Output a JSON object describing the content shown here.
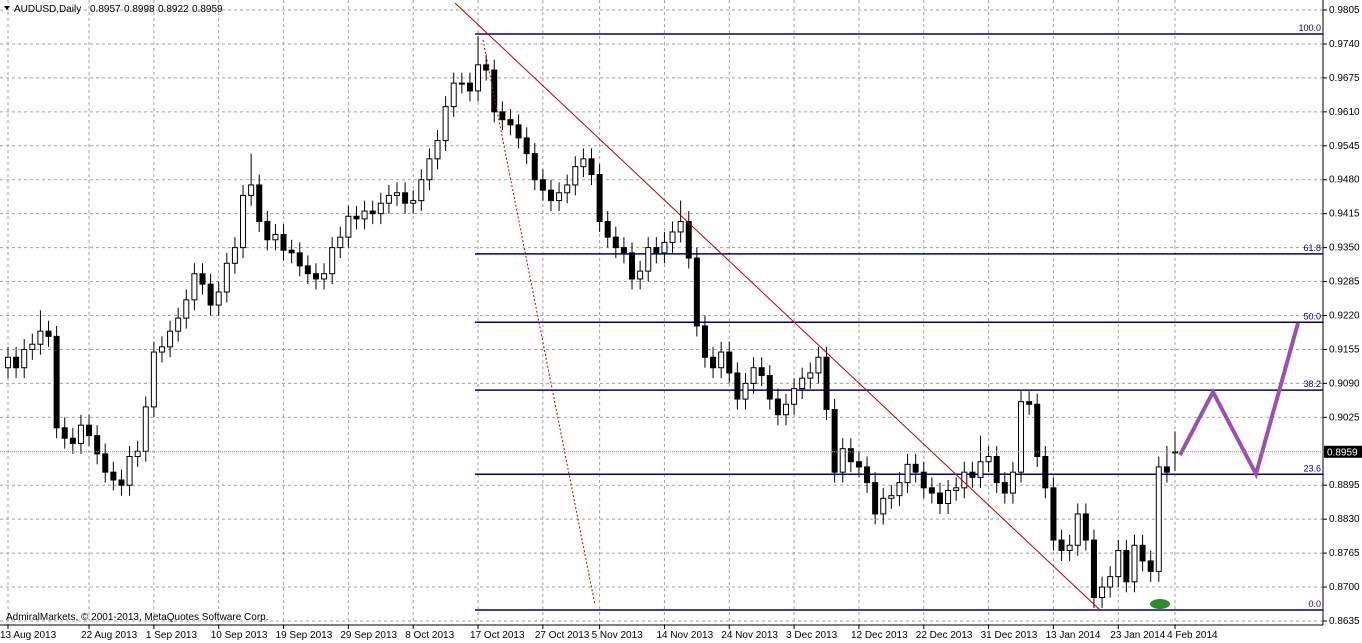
{
  "chart_data": {
    "type": "candlestick",
    "title": "AUDUSD,Daily",
    "watermark": "AdmiralMarkets, © 2001-2013, MetaQuotes Software Corp.",
    "categories": [
      "13 Aug 2013",
      null,
      null,
      null,
      null,
      null,
      null,
      null,
      null,
      null,
      "22 Aug 2013",
      null,
      null,
      null,
      null,
      null,
      null,
      null,
      "1 Sep 2013",
      null,
      null,
      null,
      null,
      null,
      null,
      null,
      "10 Sep 2013",
      null,
      null,
      null,
      null,
      null,
      null,
      null,
      "19 Sep 2013",
      null,
      null,
      null,
      null,
      null,
      null,
      null,
      "29 Sep 2013",
      null,
      null,
      null,
      null,
      null,
      null,
      null,
      "8 Oct 2013",
      null,
      null,
      null,
      null,
      null,
      null,
      null,
      "17 Oct 2013",
      null,
      null,
      null,
      null,
      null,
      null,
      null,
      "27 Oct 2013",
      null,
      null,
      null,
      null,
      null,
      null,
      "5 Nov 2013",
      null,
      null,
      null,
      null,
      null,
      null,
      null,
      "14 Nov 2013",
      null,
      null,
      null,
      null,
      null,
      null,
      null,
      "24 Nov 2013",
      null,
      null,
      null,
      null,
      null,
      null,
      null,
      "3 Dec 2013",
      null,
      null,
      null,
      null,
      null,
      null,
      null,
      "12 Dec 2013",
      null,
      null,
      null,
      null,
      null,
      null,
      null,
      "22 Dec 2013",
      null,
      null,
      null,
      null,
      null,
      null,
      null,
      "31 Dec 2013",
      null,
      null,
      null,
      null,
      null,
      null,
      null,
      "13 Jan 2014",
      null,
      null,
      null,
      null,
      null,
      null,
      null,
      "23 Jan 2014",
      null,
      null,
      null,
      null,
      null,
      null,
      "4 Feb 2014"
    ],
    "open": [
      0.912,
      0.914,
      0.912,
      0.9155,
      0.9165,
      0.919,
      0.918,
      0.9005,
      0.8985,
      0.8975,
      0.901,
      0.899,
      0.8955,
      0.892,
      0.8905,
      0.8895,
      0.895,
      0.896,
      0.9045,
      0.915,
      0.916,
      0.919,
      0.9215,
      0.925,
      0.93,
      0.928,
      0.924,
      0.9265,
      0.932,
      0.935,
      0.945,
      0.947,
      0.94,
      0.9365,
      0.9375,
      0.9345,
      0.934,
      0.9315,
      0.93,
      0.929,
      0.93,
      0.935,
      0.937,
      0.941,
      0.9405,
      0.942,
      0.9415,
      0.9435,
      0.945,
      0.9455,
      0.9435,
      0.944,
      0.948,
      0.952,
      0.9555,
      0.962,
      0.9665,
      0.9665,
      0.965,
      0.97,
      0.969,
      0.961,
      0.9595,
      0.9585,
      0.956,
      0.953,
      0.948,
      0.946,
      0.944,
      0.9455,
      0.947,
      0.9505,
      0.952,
      0.949,
      0.94,
      0.937,
      0.935,
      0.934,
      0.929,
      0.9305,
      0.935,
      0.934,
      0.936,
      0.938,
      0.94,
      0.933,
      0.92,
      0.914,
      0.912,
      0.915,
      0.911,
      0.906,
      0.909,
      0.912,
      0.9105,
      0.906,
      0.903,
      0.905,
      0.908,
      0.91,
      0.911,
      0.914,
      0.904,
      0.892,
      0.8965,
      0.894,
      0.893,
      0.89,
      0.884,
      0.887,
      0.8875,
      0.89,
      0.8935,
      0.892,
      0.889,
      0.888,
      0.886,
      0.8885,
      0.889,
      0.892,
      0.891,
      0.894,
      0.895,
      0.89,
      0.888,
      0.892,
      0.9055,
      0.905,
      0.895,
      0.889,
      0.879,
      0.877,
      0.878,
      0.884,
      0.879,
      0.868,
      0.87,
      0.872,
      0.877,
      0.871,
      0.878,
      0.875,
      0.873,
      0.893,
      0.8957
    ],
    "high": [
      0.916,
      0.916,
      0.9175,
      0.9185,
      0.923,
      0.921,
      0.92,
      0.9025,
      0.9005,
      0.903,
      0.903,
      0.901,
      0.8975,
      0.894,
      0.8925,
      0.897,
      0.898,
      0.9065,
      0.917,
      0.918,
      0.921,
      0.9235,
      0.927,
      0.932,
      0.932,
      0.93,
      0.9285,
      0.934,
      0.937,
      0.947,
      0.953,
      0.949,
      0.942,
      0.9395,
      0.9395,
      0.9365,
      0.936,
      0.9335,
      0.932,
      0.932,
      0.937,
      0.939,
      0.943,
      0.943,
      0.944,
      0.944,
      0.9455,
      0.947,
      0.9475,
      0.9475,
      0.946,
      0.95,
      0.954,
      0.9575,
      0.964,
      0.9685,
      0.9685,
      0.9685,
      0.9755,
      0.972,
      0.971,
      0.963,
      0.9615,
      0.9605,
      0.958,
      0.955,
      0.95,
      0.948,
      0.9475,
      0.949,
      0.9525,
      0.954,
      0.954,
      0.951,
      0.942,
      0.939,
      0.937,
      0.936,
      0.9325,
      0.937,
      0.937,
      0.938,
      0.94,
      0.944,
      0.942,
      0.935,
      0.922,
      0.916,
      0.917,
      0.917,
      0.913,
      0.911,
      0.914,
      0.914,
      0.9125,
      0.908,
      0.907,
      0.91,
      0.912,
      0.913,
      0.916,
      0.916,
      0.906,
      0.8985,
      0.8985,
      0.896,
      0.895,
      0.892,
      0.889,
      0.8895,
      0.892,
      0.8955,
      0.8955,
      0.894,
      0.891,
      0.89,
      0.8905,
      0.891,
      0.894,
      0.894,
      0.899,
      0.897,
      0.897,
      0.892,
      0.894,
      0.9075,
      0.9075,
      0.907,
      0.897,
      0.891,
      0.881,
      0.88,
      0.886,
      0.886,
      0.881,
      0.872,
      0.874,
      0.879,
      0.879,
      0.88,
      0.88,
      0.877,
      0.895,
      0.897,
      0.8998
    ],
    "low": [
      0.91,
      0.91,
      0.91,
      0.9135,
      0.9145,
      0.916,
      0.8985,
      0.8965,
      0.8955,
      0.8955,
      0.897,
      0.8935,
      0.89,
      0.8885,
      0.8875,
      0.8875,
      0.893,
      0.894,
      0.9025,
      0.913,
      0.914,
      0.917,
      0.9195,
      0.923,
      0.926,
      0.922,
      0.922,
      0.9245,
      0.93,
      0.933,
      0.943,
      0.938,
      0.9345,
      0.9345,
      0.9325,
      0.932,
      0.9295,
      0.928,
      0.927,
      0.927,
      0.928,
      0.933,
      0.935,
      0.9385,
      0.9385,
      0.9395,
      0.9395,
      0.9415,
      0.943,
      0.9415,
      0.9415,
      0.942,
      0.946,
      0.95,
      0.9535,
      0.96,
      0.9645,
      0.963,
      0.963,
      0.967,
      0.959,
      0.9575,
      0.9565,
      0.954,
      0.951,
      0.946,
      0.944,
      0.942,
      0.942,
      0.9435,
      0.945,
      0.9485,
      0.947,
      0.938,
      0.935,
      0.933,
      0.932,
      0.927,
      0.927,
      0.9285,
      0.932,
      0.932,
      0.934,
      0.936,
      0.931,
      0.918,
      0.912,
      0.91,
      0.91,
      0.909,
      0.904,
      0.904,
      0.907,
      0.9085,
      0.904,
      0.901,
      0.901,
      0.903,
      0.906,
      0.908,
      0.909,
      0.902,
      0.89,
      0.89,
      0.892,
      0.891,
      0.888,
      0.882,
      0.882,
      0.885,
      0.8855,
      0.888,
      0.89,
      0.887,
      0.886,
      0.884,
      0.884,
      0.8865,
      0.887,
      0.889,
      0.889,
      0.892,
      0.888,
      0.886,
      0.886,
      0.89,
      0.903,
      0.893,
      0.887,
      0.877,
      0.875,
      0.875,
      0.876,
      0.877,
      0.866,
      0.866,
      0.868,
      0.87,
      0.869,
      0.869,
      0.873,
      0.871,
      0.871,
      0.89,
      0.8922
    ],
    "close": [
      0.914,
      0.912,
      0.9155,
      0.9165,
      0.919,
      0.918,
      0.9005,
      0.8985,
      0.8975,
      0.901,
      0.899,
      0.8955,
      0.892,
      0.8905,
      0.8895,
      0.895,
      0.896,
      0.9045,
      0.915,
      0.916,
      0.919,
      0.9215,
      0.925,
      0.93,
      0.928,
      0.924,
      0.9265,
      0.932,
      0.935,
      0.945,
      0.947,
      0.94,
      0.9365,
      0.9375,
      0.9345,
      0.934,
      0.9315,
      0.93,
      0.929,
      0.93,
      0.935,
      0.937,
      0.941,
      0.9405,
      0.942,
      0.9415,
      0.9435,
      0.945,
      0.9455,
      0.9435,
      0.944,
      0.948,
      0.952,
      0.9555,
      0.962,
      0.9665,
      0.9665,
      0.965,
      0.97,
      0.969,
      0.961,
      0.9595,
      0.9585,
      0.956,
      0.953,
      0.948,
      0.946,
      0.944,
      0.9455,
      0.947,
      0.9505,
      0.952,
      0.949,
      0.94,
      0.937,
      0.935,
      0.934,
      0.929,
      0.9305,
      0.935,
      0.934,
      0.936,
      0.938,
      0.94,
      0.933,
      0.92,
      0.914,
      0.912,
      0.915,
      0.911,
      0.906,
      0.909,
      0.912,
      0.9105,
      0.906,
      0.903,
      0.905,
      0.908,
      0.91,
      0.911,
      0.914,
      0.904,
      0.892,
      0.8965,
      0.894,
      0.893,
      0.89,
      0.884,
      0.887,
      0.8875,
      0.89,
      0.8935,
      0.892,
      0.889,
      0.888,
      0.886,
      0.8885,
      0.889,
      0.892,
      0.891,
      0.894,
      0.895,
      0.89,
      0.888,
      0.892,
      0.9055,
      0.905,
      0.895,
      0.889,
      0.879,
      0.877,
      0.878,
      0.884,
      0.879,
      0.868,
      0.87,
      0.872,
      0.877,
      0.871,
      0.878,
      0.875,
      0.873,
      0.893,
      0.892,
      0.8959
    ],
    "fib_levels": [
      {
        "label": "100.0",
        "value": 0.9759
      },
      {
        "label": "61.8",
        "value": 0.9338
      },
      {
        "label": "50.0",
        "value": 0.9207
      },
      {
        "label": "38.2",
        "value": 0.9077
      },
      {
        "label": "23.6",
        "value": 0.8916
      },
      {
        "label": "0.0",
        "value": 0.8656
      }
    ],
    "ylim": [
      0.8635,
      0.9805
    ],
    "yticks": [
      0.9805,
      {
        "value": 0.974,
        "label": "0.9740"
      },
      0.9675,
      {
        "value": 0.961,
        "label": "0.9610"
      },
      0.9545,
      {
        "value": 0.948,
        "label": "0.9480"
      },
      0.9415,
      {
        "value": 0.935,
        "label": "0.9350"
      },
      0.9285,
      {
        "value": 0.922,
        "label": "0.9220"
      },
      0.9155,
      {
        "value": 0.909,
        "label": "0.9090"
      },
      0.9025,
      0.8895,
      {
        "value": 0.883,
        "label": "0.8830"
      },
      0.8765,
      {
        "value": 0.87,
        "label": "0.8700"
      },
      0.8635
    ],
    "grid": true
  }
}
